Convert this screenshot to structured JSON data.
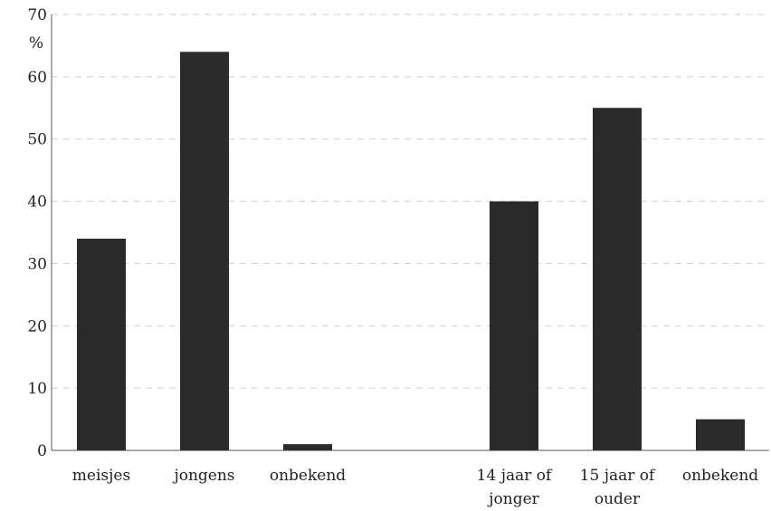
{
  "chart_data": {
    "type": "bar",
    "ylabel": "%",
    "ylim": [
      0,
      70
    ],
    "yticks": [
      0,
      10,
      20,
      30,
      40,
      50,
      60,
      70
    ],
    "grid": true,
    "bar_color": "#2b2b2b",
    "categories": [
      [
        "meisjes"
      ],
      [
        "jongens"
      ],
      [
        "onbekend"
      ],
      [
        "14 jaar of",
        "jonger"
      ],
      [
        "15 jaar of",
        "ouder"
      ],
      [
        "onbekend"
      ]
    ],
    "values": [
      34,
      64,
      1,
      40,
      55,
      5
    ]
  }
}
